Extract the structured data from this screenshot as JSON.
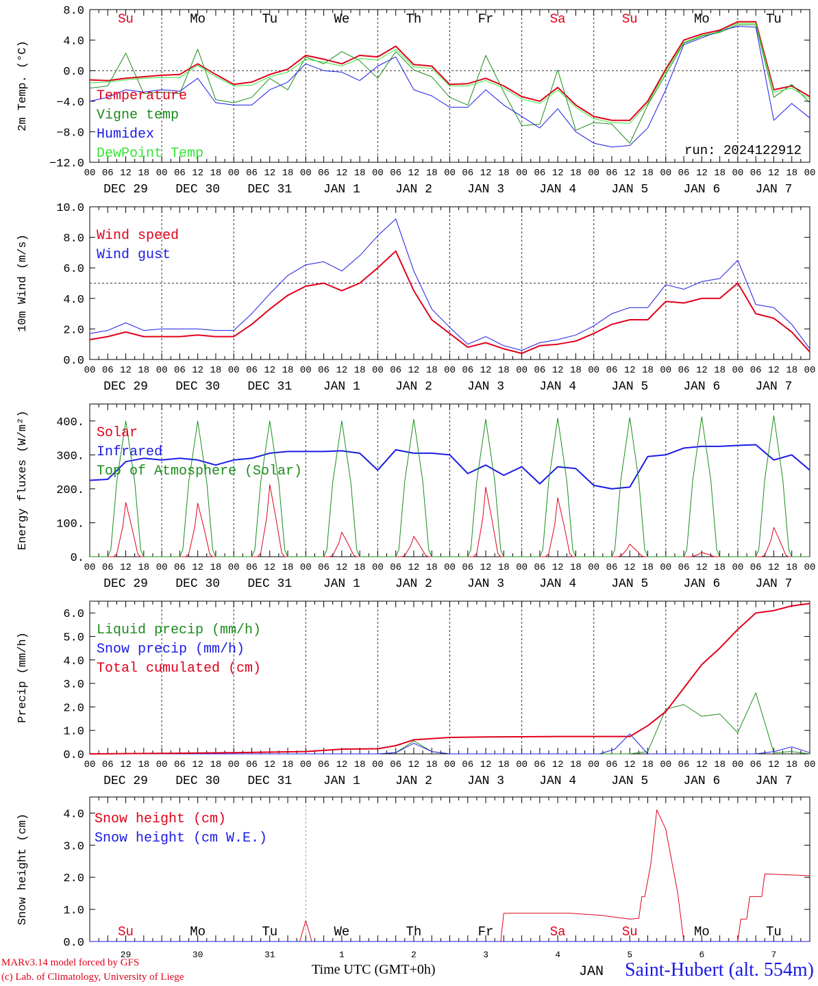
{
  "colors": {
    "red": "#e0001a",
    "blue": "#1a1ae6",
    "green": "#1a8c1a",
    "lightgreen": "#33e633",
    "grid": "#555555"
  },
  "run_label": "run: 2024122912",
  "hour_ticks": [
    "00",
    "06",
    "12",
    "18"
  ],
  "end_tick": "00",
  "date_labels": [
    "DEC 29",
    "DEC 30",
    "DEC 31",
    "JAN  1",
    "JAN  2",
    "JAN  3",
    "JAN  4",
    "JAN  5",
    "JAN  6",
    "JAN  7"
  ],
  "weekdays": [
    "Su",
    "Mo",
    "Tu",
    "We",
    "Th",
    "Fr",
    "Sa",
    "Su",
    "Mo",
    "Tu"
  ],
  "weekday_colors": [
    "#e0001a",
    "#000000",
    "#000000",
    "#000000",
    "#000000",
    "#000000",
    "#e0001a",
    "#e0001a",
    "#000000",
    "#000000"
  ],
  "bottom_day_numbers": [
    "29",
    "30",
    "31",
    "1",
    "2",
    "3",
    "4",
    "5",
    "6",
    "7"
  ],
  "bottom_weekday_labels": [
    "Su",
    "Mo",
    "Tu",
    "We",
    "Th",
    "Fr",
    "Sa",
    "Su",
    "Mo",
    "Tu"
  ],
  "footer": {
    "credit_line1": "MARv3.14 model forced by GFS",
    "credit_line2": "(c) Lab. of Climatology, University of Liege",
    "xlabel": "Time UTC (GMT+0h)",
    "station": "Saint-Hubert (alt. 554m)",
    "overlap_text": "JAN"
  },
  "chart_data": [
    {
      "type": "line",
      "ylabel": "2m Temp. (°C)",
      "ylim": [
        -12,
        8
      ],
      "yticks": [
        "8.0",
        "4.0",
        "0.0",
        "−4.0",
        "−8.0",
        "−12.0"
      ],
      "ytick_values": [
        8,
        4,
        0,
        -4,
        -8,
        -12
      ],
      "reference_line": 0,
      "legend_placement": "upper-left",
      "series": [
        {
          "name": "Temperature",
          "color": "#e0001a",
          "width": 2,
          "x": [
            0,
            6,
            12,
            18,
            24,
            30,
            36,
            42,
            48,
            54,
            60,
            66,
            72,
            78,
            84,
            90,
            96,
            102,
            108,
            114,
            120,
            126,
            132,
            138,
            144,
            150,
            156,
            162,
            168,
            174,
            180,
            186,
            192,
            198,
            204,
            210,
            216,
            222,
            228,
            234,
            240
          ],
          "y": [
            -1.2,
            -1.3,
            -1.0,
            -0.8,
            -0.6,
            -0.5,
            0.9,
            -0.5,
            -1.8,
            -1.5,
            -0.5,
            0.2,
            2.0,
            1.5,
            0.9,
            2.0,
            1.8,
            3.2,
            0.8,
            0.6,
            -1.8,
            -1.7,
            -1.0,
            -2.0,
            -3.4,
            -4.0,
            -2.2,
            -4.5,
            -6.0,
            -6.5,
            -6.5,
            -4.0,
            0.2,
            4.0,
            4.8,
            5.3,
            6.4,
            6.4,
            -2.5,
            -2.0,
            -3.4
          ]
        },
        {
          "name": "Vigne temp",
          "color": "#1a8c1a",
          "width": 1,
          "x": [
            0,
            6,
            12,
            18,
            24,
            30,
            36,
            42,
            48,
            54,
            60,
            66,
            72,
            78,
            84,
            90,
            96,
            102,
            108,
            114,
            120,
            126,
            132,
            138,
            144,
            150,
            156,
            162,
            168,
            174,
            180,
            186,
            192,
            198,
            204,
            210,
            216,
            222,
            228,
            234,
            240
          ],
          "y": [
            -2.3,
            -2.0,
            2.3,
            -3.0,
            -2.8,
            -3.0,
            2.8,
            -3.8,
            -4.2,
            -3.5,
            -1.0,
            -2.5,
            1.8,
            0.9,
            2.5,
            1.3,
            -1.0,
            2.5,
            0.1,
            -0.8,
            -3.5,
            -4.5,
            2.0,
            -2.8,
            -7.2,
            -7.0,
            0.1,
            -7.8,
            -6.8,
            -7.0,
            -9.5,
            -4.5,
            -0.5,
            3.6,
            4.5,
            5.0,
            6.0,
            6.0,
            -3.5,
            -1.8,
            -4.2
          ]
        },
        {
          "name": "Humidex",
          "color": "#1a1ae6",
          "width": 1,
          "x": [
            0,
            6,
            12,
            18,
            24,
            30,
            36,
            42,
            48,
            54,
            60,
            66,
            72,
            78,
            84,
            90,
            96,
            102,
            108,
            114,
            120,
            126,
            132,
            138,
            144,
            150,
            156,
            162,
            168,
            174,
            180,
            186,
            192,
            198,
            204,
            210,
            216,
            222,
            228,
            234,
            240
          ],
          "y": [
            -4.0,
            -3.5,
            -2.5,
            -2.8,
            -2.5,
            -2.7,
            -1.0,
            -4.2,
            -4.5,
            -4.5,
            -2.5,
            -1.5,
            0.9,
            0.0,
            -0.2,
            -1.3,
            0.6,
            1.8,
            -2.5,
            -3.3,
            -4.8,
            -4.8,
            -2.5,
            -4.5,
            -6.0,
            -7.5,
            -5.0,
            -8.0,
            -9.5,
            -10.0,
            -9.8,
            -7.5,
            -2.5,
            3.4,
            4.3,
            5.2,
            5.8,
            5.7,
            -6.5,
            -4.3,
            -6.2
          ]
        },
        {
          "name": "DewPoint Temp",
          "color": "#33e633",
          "width": 1,
          "x": [
            0,
            6,
            12,
            18,
            24,
            30,
            36,
            42,
            48,
            54,
            60,
            66,
            72,
            78,
            84,
            90,
            96,
            102,
            108,
            114,
            120,
            126,
            132,
            138,
            144,
            150,
            156,
            162,
            168,
            174,
            180,
            186,
            192,
            198,
            204,
            210,
            216,
            222,
            228,
            234,
            240
          ],
          "y": [
            -1.6,
            -1.5,
            -1.2,
            -1.0,
            -0.9,
            -0.9,
            0.7,
            -0.8,
            -2.0,
            -1.9,
            -0.8,
            -0.2,
            1.5,
            1.1,
            0.6,
            1.6,
            1.4,
            2.8,
            0.5,
            0.3,
            -2.0,
            -2.0,
            -1.3,
            -2.3,
            -3.7,
            -4.3,
            -2.5,
            -4.8,
            -6.3,
            -6.8,
            -6.9,
            -4.3,
            -0.1,
            3.7,
            4.6,
            5.1,
            6.2,
            6.2,
            -2.8,
            -2.3,
            -3.7
          ]
        }
      ]
    },
    {
      "type": "line",
      "ylabel": "10m Wind (m/s)",
      "ylim": [
        0,
        10
      ],
      "yticks": [
        "10.0",
        "8.0",
        "6.0",
        "4.0",
        "2.0",
        "0.0"
      ],
      "ytick_values": [
        10,
        8,
        6,
        4,
        2,
        0
      ],
      "reference_line": 5,
      "legend_placement": "upper-left",
      "series": [
        {
          "name": "Wind speed",
          "color": "#e0001a",
          "width": 2,
          "x": [
            0,
            6,
            12,
            18,
            24,
            30,
            36,
            42,
            48,
            54,
            60,
            66,
            72,
            78,
            84,
            90,
            96,
            102,
            108,
            114,
            120,
            126,
            132,
            138,
            144,
            150,
            156,
            162,
            168,
            174,
            180,
            186,
            192,
            198,
            204,
            210,
            216,
            222,
            228,
            234,
            240
          ],
          "y": [
            1.3,
            1.5,
            1.8,
            1.5,
            1.5,
            1.5,
            1.6,
            1.5,
            1.5,
            2.3,
            3.3,
            4.2,
            4.8,
            5.0,
            4.5,
            5.0,
            6.0,
            7.1,
            4.5,
            2.6,
            1.7,
            0.8,
            1.1,
            0.7,
            0.4,
            0.9,
            1.0,
            1.2,
            1.7,
            2.3,
            2.6,
            2.6,
            3.8,
            3.7,
            4.0,
            4.0,
            5.0,
            3.0,
            2.7,
            1.8,
            0.5
          ]
        },
        {
          "name": "Wind gust",
          "color": "#1a1ae6",
          "width": 1,
          "x": [
            0,
            6,
            12,
            18,
            24,
            30,
            36,
            42,
            48,
            54,
            60,
            66,
            72,
            78,
            84,
            90,
            96,
            102,
            108,
            114,
            120,
            126,
            132,
            138,
            144,
            150,
            156,
            162,
            168,
            174,
            180,
            186,
            192,
            198,
            204,
            210,
            216,
            222,
            228,
            234,
            240
          ],
          "y": [
            1.7,
            1.9,
            2.4,
            1.9,
            2.0,
            2.0,
            2.0,
            1.9,
            1.9,
            3.0,
            4.3,
            5.5,
            6.2,
            6.4,
            5.8,
            6.8,
            8.1,
            9.2,
            5.8,
            3.3,
            2.1,
            1.0,
            1.5,
            0.9,
            0.6,
            1.1,
            1.3,
            1.6,
            2.2,
            3.0,
            3.4,
            3.4,
            4.9,
            4.6,
            5.1,
            5.3,
            6.5,
            3.6,
            3.4,
            2.3,
            0.7
          ]
        }
      ]
    },
    {
      "type": "line",
      "ylabel": "Energy fluxes (W/m²)",
      "ylim": [
        0,
        450
      ],
      "yticks": [
        "400.",
        "300.",
        "200.",
        "100.",
        "0."
      ],
      "ytick_values": [
        400,
        300,
        200,
        100,
        0
      ],
      "reference_line": null,
      "legend_placement": "upper-left",
      "series": [
        {
          "name": "Solar",
          "color": "#e0001a",
          "width": 1,
          "daily_peak": [
            160,
            158,
            212,
            72,
            60,
            205,
            174,
            37,
            13,
            86
          ],
          "note_x_hours_per_day": 24
        },
        {
          "name": "Infrared",
          "color": "#1a1ae6",
          "width": 2,
          "x": [
            0,
            6,
            12,
            18,
            24,
            30,
            36,
            42,
            48,
            54,
            60,
            66,
            72,
            78,
            84,
            90,
            96,
            102,
            108,
            114,
            120,
            126,
            132,
            138,
            144,
            150,
            156,
            162,
            168,
            174,
            180,
            186,
            192,
            198,
            204,
            210,
            216,
            222,
            228,
            234,
            240
          ],
          "y": [
            225,
            228,
            280,
            290,
            285,
            290,
            285,
            270,
            285,
            290,
            305,
            310,
            310,
            310,
            312,
            305,
            255,
            315,
            305,
            305,
            300,
            245,
            270,
            240,
            265,
            215,
            265,
            260,
            210,
            200,
            205,
            295,
            300,
            320,
            325,
            325,
            328,
            330,
            285,
            300,
            255
          ]
        },
        {
          "name": "Top of Atmosphere (Solar)",
          "color": "#1a8c1a",
          "width": 1,
          "daily_peak": [
            400,
            400,
            400,
            400,
            405,
            405,
            408,
            410,
            412,
            415
          ],
          "note_x_hours_per_day": 24
        }
      ]
    },
    {
      "type": "line",
      "ylabel": "Precip (mm/h)",
      "ylim": [
        0,
        6.5
      ],
      "yticks": [
        "6.0",
        "5.0",
        "4.0",
        "3.0",
        "2.0",
        "1.0",
        "0.0"
      ],
      "ytick_values": [
        6,
        5,
        4,
        3,
        2,
        1,
        0
      ],
      "reference_line": null,
      "legend_placement": "upper-left",
      "series": [
        {
          "name": "Liquid precip (mm/h)",
          "color": "#1a8c1a",
          "width": 1,
          "x": [
            0,
            60,
            84,
            96,
            102,
            108,
            114,
            120,
            180,
            186,
            192,
            198,
            204,
            210,
            216,
            222,
            228,
            234,
            240
          ],
          "y": [
            0,
            0,
            0,
            0,
            0.05,
            0.55,
            0.1,
            0,
            0,
            0.1,
            1.9,
            2.1,
            1.6,
            1.7,
            0.9,
            2.6,
            0.05,
            0.1,
            0
          ]
        },
        {
          "name": "Snow precip (mm/h)",
          "color": "#1a1ae6",
          "width": 1,
          "x": [
            0,
            96,
            102,
            108,
            114,
            120,
            170,
            175,
            180,
            186,
            192,
            198,
            204,
            210,
            216,
            222,
            228,
            234,
            240
          ],
          "y": [
            0,
            0,
            0.05,
            0.45,
            0.1,
            0,
            0,
            0.2,
            0.85,
            0,
            0,
            0,
            0,
            0,
            0,
            0,
            0.1,
            0.3,
            0.05
          ]
        },
        {
          "name": "Total cumulated (cm)",
          "color": "#e0001a",
          "width": 2,
          "x": [
            0,
            24,
            48,
            72,
            84,
            96,
            102,
            108,
            120,
            132,
            144,
            156,
            168,
            180,
            186,
            192,
            198,
            204,
            210,
            216,
            222,
            228,
            234,
            240
          ],
          "y": [
            0.0,
            0.02,
            0.05,
            0.1,
            0.2,
            0.22,
            0.35,
            0.6,
            0.7,
            0.72,
            0.73,
            0.74,
            0.74,
            0.74,
            1.2,
            1.8,
            2.8,
            3.8,
            4.5,
            5.3,
            6.0,
            6.1,
            6.3,
            6.4
          ]
        }
      ]
    },
    {
      "type": "line",
      "ylabel": "Snow height (cm)",
      "ylim": [
        0,
        4.5
      ],
      "yticks": [
        "4.0",
        "3.0",
        "2.0",
        "1.0",
        "0.0"
      ],
      "ytick_values": [
        4,
        3,
        2,
        1,
        0
      ],
      "reference_line": null,
      "legend_placement": "upper-left",
      "series": [
        {
          "name": "Snow height (cm)",
          "color": "#e0001a",
          "width": 1,
          "x": [
            0,
            70,
            72,
            74,
            76,
            137,
            138,
            160,
            170,
            180,
            183,
            184,
            185,
            187,
            189,
            192,
            196,
            198,
            212,
            216,
            217,
            219,
            220,
            224,
            225,
            226,
            240
          ],
          "y": [
            0,
            0,
            0.65,
            0,
            0,
            0,
            0.88,
            0.88,
            0.82,
            0.7,
            0.72,
            1.4,
            1.4,
            2.4,
            4.1,
            3.5,
            1.5,
            0,
            0,
            0,
            0.7,
            0.7,
            1.4,
            1.4,
            2.1,
            2.1,
            2.05
          ]
        },
        {
          "name": "Snow height (cm W.E.)",
          "color": "#1a1ae6",
          "width": 1,
          "x": [
            0,
            240
          ],
          "y": [
            0,
            0
          ]
        }
      ]
    }
  ]
}
